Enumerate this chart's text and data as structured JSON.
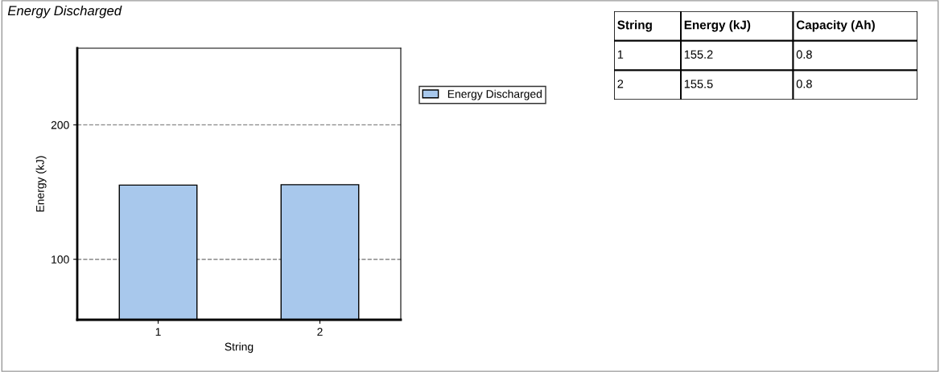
{
  "chart_data": [
    {
      "type": "bar",
      "title": "Energy Discharged",
      "xlabel": "String",
      "ylabel": "Energy (kJ)",
      "categories": [
        "1",
        "2"
      ],
      "series": [
        {
          "name": "Energy Discharged",
          "color": "#a8c8ec",
          "values": [
            155.2,
            155.5
          ]
        }
      ],
      "ylim": [
        55,
        257
      ],
      "yticks": [
        100,
        200
      ],
      "grid": "y",
      "legend": "right"
    },
    {
      "type": "other",
      "annotations": [
        "String",
        "Energy (kJ)",
        "Capacity (Ah)",
        "1",
        "155.2",
        "0.8",
        "2",
        "155.5",
        "0.8"
      ]
    }
  ]
}
